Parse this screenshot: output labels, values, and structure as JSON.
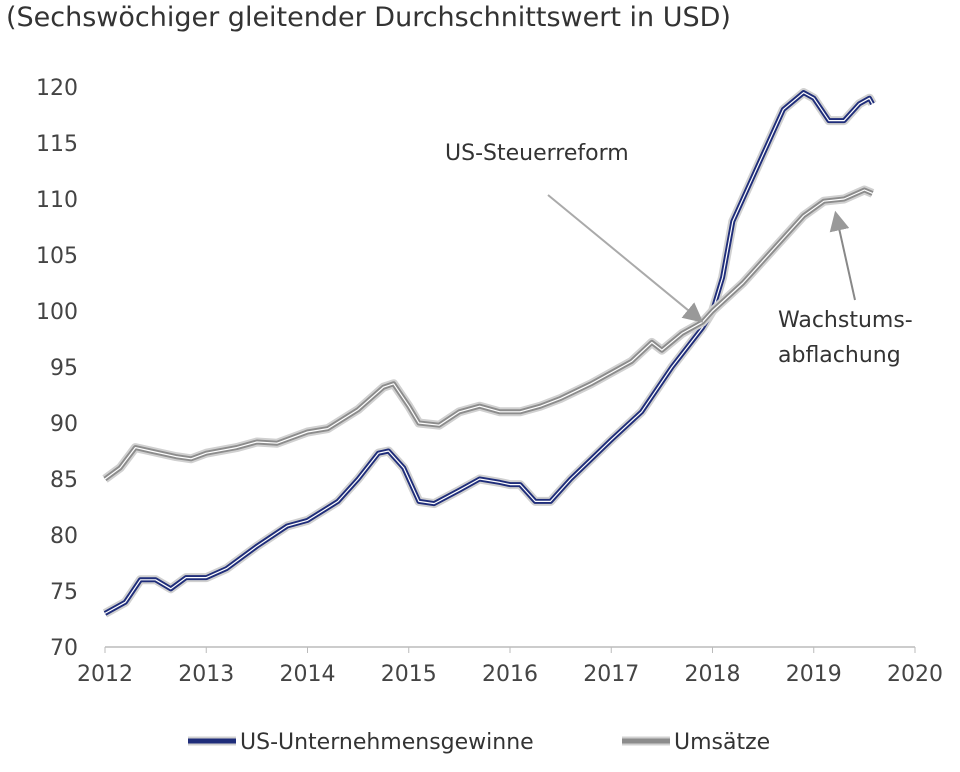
{
  "chart_data": {
    "type": "line",
    "title": "(Sechswöchiger gleitender Durchschnittswert in USD)",
    "xlabel": "",
    "ylabel": "",
    "xlim": [
      2012,
      2020
    ],
    "ylim": [
      70,
      120
    ],
    "x_ticks": [
      "2012",
      "2013",
      "2014",
      "2015",
      "2016",
      "2017",
      "2018",
      "2019",
      "2020"
    ],
    "y_ticks": [
      "70",
      "75",
      "80",
      "85",
      "90",
      "95",
      "100",
      "105",
      "110",
      "115",
      "120"
    ],
    "grid": false,
    "legend": "bottom",
    "series": [
      {
        "name": "US-Unternehmensgewinne",
        "color": "#1f2d7a",
        "x": [
          2012.0,
          2012.2,
          2012.35,
          2012.5,
          2012.65,
          2012.8,
          2013.0,
          2013.2,
          2013.5,
          2013.8,
          2014.0,
          2014.3,
          2014.5,
          2014.7,
          2014.8,
          2014.95,
          2015.1,
          2015.25,
          2015.5,
          2015.7,
          2015.9,
          2016.0,
          2016.1,
          2016.25,
          2016.4,
          2016.6,
          2017.0,
          2017.3,
          2017.6,
          2017.9,
          2018.0,
          2018.1,
          2018.2,
          2018.3,
          2018.5,
          2018.7,
          2018.9,
          2019.0,
          2019.15,
          2019.3,
          2019.45,
          2019.55,
          2019.58
        ],
        "values": [
          73,
          74,
          76,
          76,
          75.2,
          76.2,
          76.2,
          77,
          79,
          80.8,
          81.3,
          83,
          85,
          87.3,
          87.5,
          86,
          83,
          82.8,
          84,
          85,
          84.7,
          84.5,
          84.5,
          83,
          83,
          85,
          88.5,
          91,
          95,
          98.5,
          100,
          103,
          108,
          110,
          114,
          118,
          119.5,
          119,
          117,
          117,
          118.5,
          119,
          118.5
        ]
      },
      {
        "name": "Umsätze",
        "color": "#8c8c8c",
        "x": [
          2012.0,
          2012.15,
          2012.3,
          2012.45,
          2012.7,
          2012.85,
          2013.0,
          2013.3,
          2013.5,
          2013.7,
          2014.0,
          2014.2,
          2014.5,
          2014.75,
          2014.85,
          2015.0,
          2015.1,
          2015.3,
          2015.5,
          2015.7,
          2015.9,
          2016.1,
          2016.3,
          2016.5,
          2016.8,
          2017.0,
          2017.2,
          2017.4,
          2017.5,
          2017.7,
          2017.9,
          2018.0,
          2018.3,
          2018.6,
          2018.9,
          2019.1,
          2019.3,
          2019.5,
          2019.58
        ],
        "values": [
          85,
          86,
          87.8,
          87.5,
          87,
          86.8,
          87.3,
          87.8,
          88.3,
          88.2,
          89.2,
          89.5,
          91.2,
          93.2,
          93.5,
          91.5,
          90,
          89.8,
          91,
          91.5,
          91,
          91,
          91.5,
          92.2,
          93.5,
          94.5,
          95.5,
          97.2,
          96.5,
          98,
          99,
          100,
          102.5,
          105.5,
          108.5,
          109.8,
          110,
          110.8,
          110.5
        ]
      }
    ],
    "annotations": [
      {
        "text": "US-Steuerreform",
        "points_to": [
          2017.8,
          99
        ]
      },
      {
        "lines": [
          "Wachstums-",
          "abflachung"
        ],
        "points_to": [
          2019.2,
          109.5
        ]
      }
    ]
  }
}
